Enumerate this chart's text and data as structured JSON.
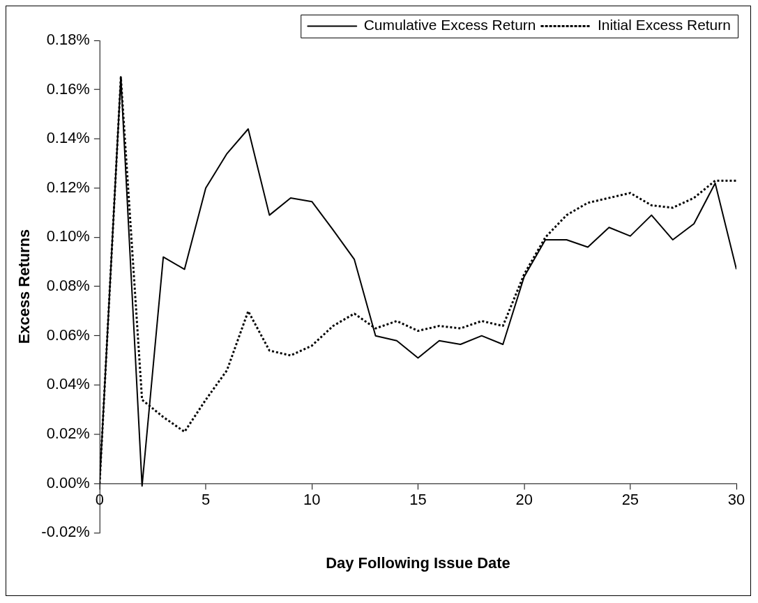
{
  "chart_data": {
    "type": "line",
    "xlabel": "Day Following Issue Date",
    "ylabel": "Excess Returns",
    "x": [
      0,
      1,
      2,
      3,
      4,
      5,
      6,
      7,
      8,
      9,
      10,
      11,
      12,
      13,
      14,
      15,
      16,
      17,
      18,
      19,
      20,
      21,
      22,
      23,
      24,
      25,
      26,
      27,
      28,
      29,
      30
    ],
    "series": [
      {
        "name": "Cumulative Excess Return",
        "color": "#000000",
        "line_style": "solid",
        "values": [
          0,
          0.165,
          -0.001,
          0.092,
          0.087,
          0.12,
          0.134,
          0.144,
          0.109,
          0.116,
          0.1145,
          0.103,
          0.091,
          0.06,
          0.058,
          0.051,
          0.058,
          0.0565,
          0.06,
          0.0565,
          0.084,
          0.099,
          0.099,
          0.096,
          0.104,
          0.1005,
          0.109,
          0.099,
          0.1055,
          0.122,
          0.087
        ]
      },
      {
        "name": "Initial Excess Return",
        "color": "#000000",
        "line_style": "dotted",
        "values": [
          0,
          0.165,
          0.034,
          0.027,
          0.021,
          0.034,
          0.046,
          0.07,
          0.054,
          0.052,
          0.056,
          0.064,
          0.069,
          0.063,
          0.066,
          0.062,
          0.064,
          0.063,
          0.066,
          0.064,
          0.085,
          0.1,
          0.109,
          0.114,
          0.116,
          0.118,
          0.113,
          0.112,
          0.116,
          0.123,
          0.123
        ]
      }
    ],
    "xlim": [
      0,
      30
    ],
    "xticks": [
      0,
      5,
      10,
      15,
      20,
      25,
      30
    ],
    "ylim": [
      -0.02,
      0.18
    ],
    "yticks": [
      {
        "value": -0.02,
        "label": "-0.02%"
      },
      {
        "value": 0,
        "label": "0.00%"
      },
      {
        "value": 0.02,
        "label": "0.02%"
      },
      {
        "value": 0.04,
        "label": "0.04%"
      },
      {
        "value": 0.06,
        "label": "0.06%"
      },
      {
        "value": 0.08,
        "label": "0.08%"
      },
      {
        "value": 0.1,
        "label": "0.10%"
      },
      {
        "value": 0.12,
        "label": "0.12%"
      },
      {
        "value": 0.14,
        "label": "0.14%"
      },
      {
        "value": 0.16,
        "label": "0.16%"
      },
      {
        "value": 0.18,
        "label": "0.18%"
      }
    ],
    "grid": false,
    "legend": "top",
    "marker": "none"
  }
}
